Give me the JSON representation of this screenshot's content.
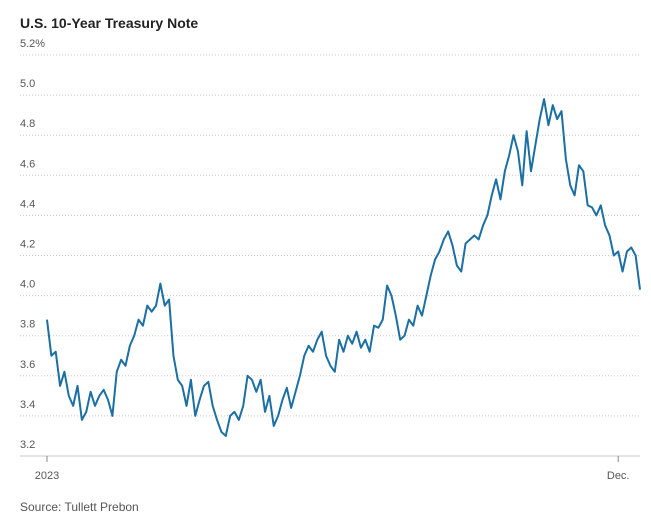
{
  "chart_data": {
    "type": "line",
    "title": "U.S. 10-Year Treasury Note",
    "source": "Source: Tullett Prebon",
    "categories": [
      "2023",
      null,
      null,
      null,
      null,
      null,
      null,
      null,
      null,
      null,
      null,
      null,
      null,
      null,
      null,
      null,
      null,
      null,
      null,
      null,
      null,
      null,
      null,
      null,
      null,
      null,
      null,
      null,
      null,
      null,
      null,
      null,
      null,
      null,
      null,
      null,
      null,
      null,
      null,
      null,
      null,
      null,
      null,
      null,
      null,
      null,
      null,
      null,
      null,
      null,
      null,
      null,
      null,
      null,
      null,
      null,
      null,
      null,
      null,
      null,
      null,
      null,
      null,
      null,
      null,
      null,
      null,
      null,
      null,
      null,
      null,
      null,
      null,
      null,
      null,
      null,
      null,
      null,
      null,
      null,
      null,
      null,
      null,
      null,
      null,
      null,
      null,
      null,
      null,
      null,
      null,
      null,
      null,
      null,
      null,
      null,
      null,
      null,
      null,
      null,
      null,
      null,
      null,
      null,
      null,
      null,
      null,
      null,
      null,
      null,
      null,
      null,
      null,
      null,
      null,
      null,
      null,
      null,
      null,
      null,
      null,
      null,
      null,
      null,
      null,
      null,
      null,
      null,
      null,
      null,
      null,
      "Dec.",
      null,
      null,
      null,
      null,
      null
    ],
    "series": [
      {
        "color": "#1b6fa3",
        "values": [
          3.88,
          3.7,
          3.72,
          3.55,
          3.62,
          3.5,
          3.45,
          3.55,
          3.38,
          3.42,
          3.52,
          3.45,
          3.5,
          3.53,
          3.48,
          3.4,
          3.62,
          3.68,
          3.65,
          3.75,
          3.8,
          3.88,
          3.85,
          3.95,
          3.92,
          3.95,
          4.06,
          3.95,
          3.98,
          3.7,
          3.58,
          3.55,
          3.45,
          3.58,
          3.4,
          3.48,
          3.55,
          3.57,
          3.45,
          3.38,
          3.32,
          3.3,
          3.4,
          3.42,
          3.38,
          3.45,
          3.6,
          3.58,
          3.52,
          3.58,
          3.42,
          3.5,
          3.35,
          3.4,
          3.48,
          3.54,
          3.44,
          3.52,
          3.6,
          3.7,
          3.75,
          3.72,
          3.78,
          3.82,
          3.7,
          3.65,
          3.62,
          3.78,
          3.72,
          3.8,
          3.76,
          3.82,
          3.74,
          3.78,
          3.72,
          3.85,
          3.84,
          3.88,
          4.05,
          4.0,
          3.9,
          3.78,
          3.8,
          3.88,
          3.85,
          3.95,
          3.9,
          4.0,
          4.1,
          4.18,
          4.22,
          4.28,
          4.32,
          4.25,
          4.15,
          4.12,
          4.26,
          4.28,
          4.3,
          4.28,
          4.35,
          4.4,
          4.5,
          4.58,
          4.48,
          4.62,
          4.7,
          4.8,
          4.72,
          4.55,
          4.82,
          4.62,
          4.75,
          4.88,
          4.98,
          4.85,
          4.95,
          4.88,
          4.92,
          4.68,
          4.55,
          4.5,
          4.65,
          4.62,
          4.45,
          4.44,
          4.4,
          4.45,
          4.35,
          4.3,
          4.2,
          4.22,
          4.12,
          4.22,
          4.24,
          4.2,
          4.03
        ]
      }
    ],
    "ylim": [
      3.2,
      5.2
    ],
    "yticks": [
      3.2,
      3.4,
      3.6,
      3.8,
      {
        "value": 4,
        "label": "4.0"
      },
      4.2,
      4.4,
      4.6,
      4.8,
      {
        "value": 5,
        "label": "5.0"
      },
      {
        "value": 5.2,
        "label": "5.2%"
      }
    ],
    "grid": true
  }
}
